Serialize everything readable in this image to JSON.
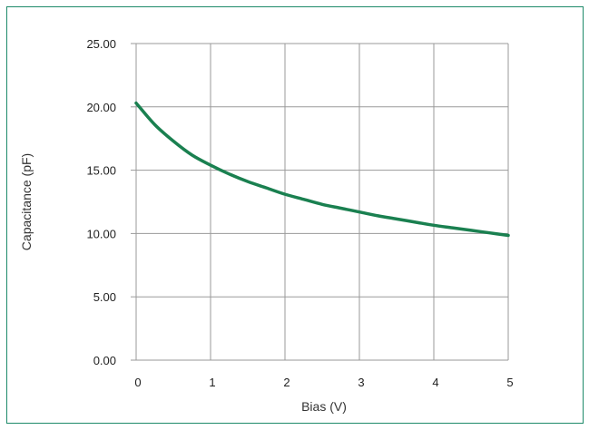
{
  "colors": {
    "frame_border": "#1e8a6a",
    "series_line": "#1a8050",
    "grid": "#9a9a9a"
  },
  "chart_data": {
    "type": "line",
    "title": "",
    "xlabel": "Bias (V)",
    "ylabel": "Capacitance (pF)",
    "xlim": [
      0,
      5
    ],
    "ylim": [
      0,
      25
    ],
    "x_ticks": [
      "0",
      "1",
      "2",
      "3",
      "4",
      "5"
    ],
    "y_ticks": [
      "0.00",
      "5.00",
      "10.00",
      "15.00",
      "20.00",
      "25.00"
    ],
    "grid": true,
    "legend": "none",
    "series": [
      {
        "x": [
          0,
          0.25,
          0.5,
          0.75,
          1.0,
          1.25,
          1.5,
          1.75,
          2.0,
          2.25,
          2.5,
          2.75,
          3.0,
          3.25,
          3.5,
          3.75,
          4.0,
          4.25,
          4.5,
          4.75,
          5.0
        ],
        "y": [
          20.3,
          18.6,
          17.3,
          16.2,
          15.4,
          14.7,
          14.1,
          13.6,
          13.1,
          12.7,
          12.3,
          12.0,
          11.7,
          11.4,
          11.15,
          10.9,
          10.65,
          10.45,
          10.25,
          10.05,
          9.85
        ]
      }
    ]
  }
}
